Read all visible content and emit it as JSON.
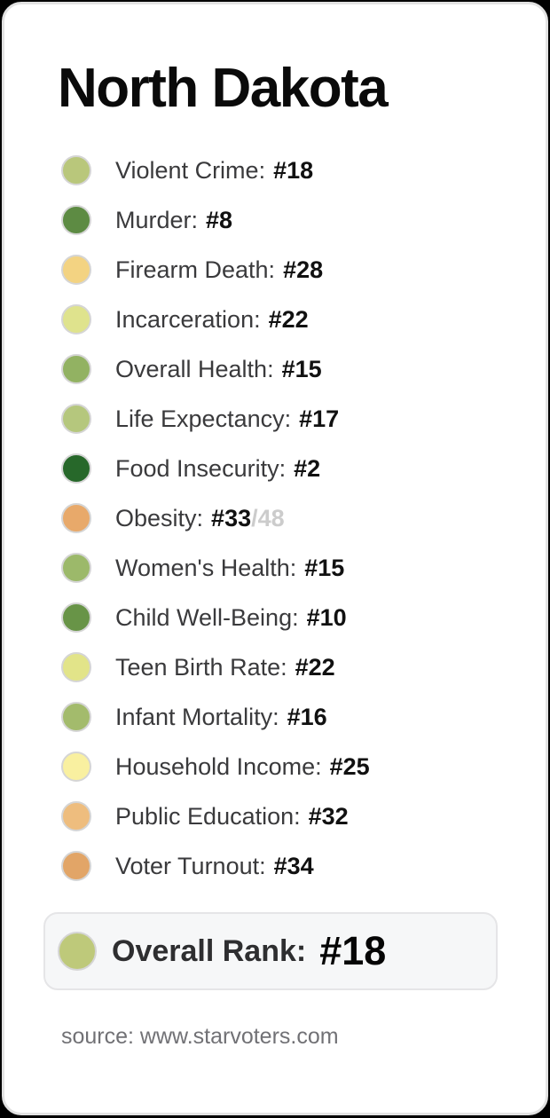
{
  "page": {
    "background_color": "#000000",
    "card_background_color": "#ffffff",
    "card_border_color": "#e2e2e2"
  },
  "title": "North Dakota",
  "metrics": {
    "rows": [
      {
        "label": "Violent Crime:",
        "rank": "#18",
        "denominator": "",
        "color": "#b9c77b"
      },
      {
        "label": "Murder:",
        "rank": "#8",
        "denominator": "",
        "color": "#5d8b43"
      },
      {
        "label": "Firearm Death:",
        "rank": "#28",
        "denominator": "",
        "color": "#f3d382"
      },
      {
        "label": "Incarceration:",
        "rank": "#22",
        "denominator": "",
        "color": "#dfe38d"
      },
      {
        "label": "Overall Health:",
        "rank": "#15",
        "denominator": "",
        "color": "#92b262"
      },
      {
        "label": "Life Expectancy:",
        "rank": "#17",
        "denominator": "",
        "color": "#b5c77d"
      },
      {
        "label": "Food Insecurity:",
        "rank": "#2",
        "denominator": "",
        "color": "#27682a"
      },
      {
        "label": "Obesity:",
        "rank": "#33",
        "denominator": "/48",
        "color": "#e8a96a"
      },
      {
        "label": "Women's Health:",
        "rank": "#15",
        "denominator": "",
        "color": "#9cb96a"
      },
      {
        "label": "Child Well-Being:",
        "rank": "#10",
        "denominator": "",
        "color": "#689447"
      },
      {
        "label": "Teen Birth Rate:",
        "rank": "#22",
        "denominator": "",
        "color": "#e2e489"
      },
      {
        "label": "Infant Mortality:",
        "rank": "#16",
        "denominator": "",
        "color": "#a3bb6c"
      },
      {
        "label": "Household Income:",
        "rank": "#25",
        "denominator": "",
        "color": "#f9f0a0"
      },
      {
        "label": "Public Education:",
        "rank": "#32",
        "denominator": "",
        "color": "#eebd7e"
      },
      {
        "label": "Voter Turnout:",
        "rank": "#34",
        "denominator": "",
        "color": "#e2a567"
      }
    ]
  },
  "overall": {
    "label": "Overall Rank:",
    "rank": "#18",
    "color": "#bec97a",
    "box_background": "#f6f7f8"
  },
  "source": "source: www.starvoters.com",
  "chart_data": {
    "type": "table",
    "title": "North Dakota",
    "categories": [
      "Violent Crime",
      "Murder",
      "Firearm Death",
      "Incarceration",
      "Overall Health",
      "Life Expectancy",
      "Food Insecurity",
      "Obesity",
      "Women's Health",
      "Child Well-Being",
      "Teen Birth Rate",
      "Infant Mortality",
      "Household Income",
      "Public Education",
      "Voter Turnout"
    ],
    "values": [
      18,
      8,
      28,
      22,
      15,
      17,
      2,
      33,
      15,
      10,
      22,
      16,
      25,
      32,
      34
    ],
    "value_unit": "state rank",
    "denominator_shown_for_obesity": 48,
    "overall_rank": 18,
    "color_encoding": "green = better rank, orange = worse rank",
    "legend_position": "none",
    "source": "www.starvoters.com"
  }
}
